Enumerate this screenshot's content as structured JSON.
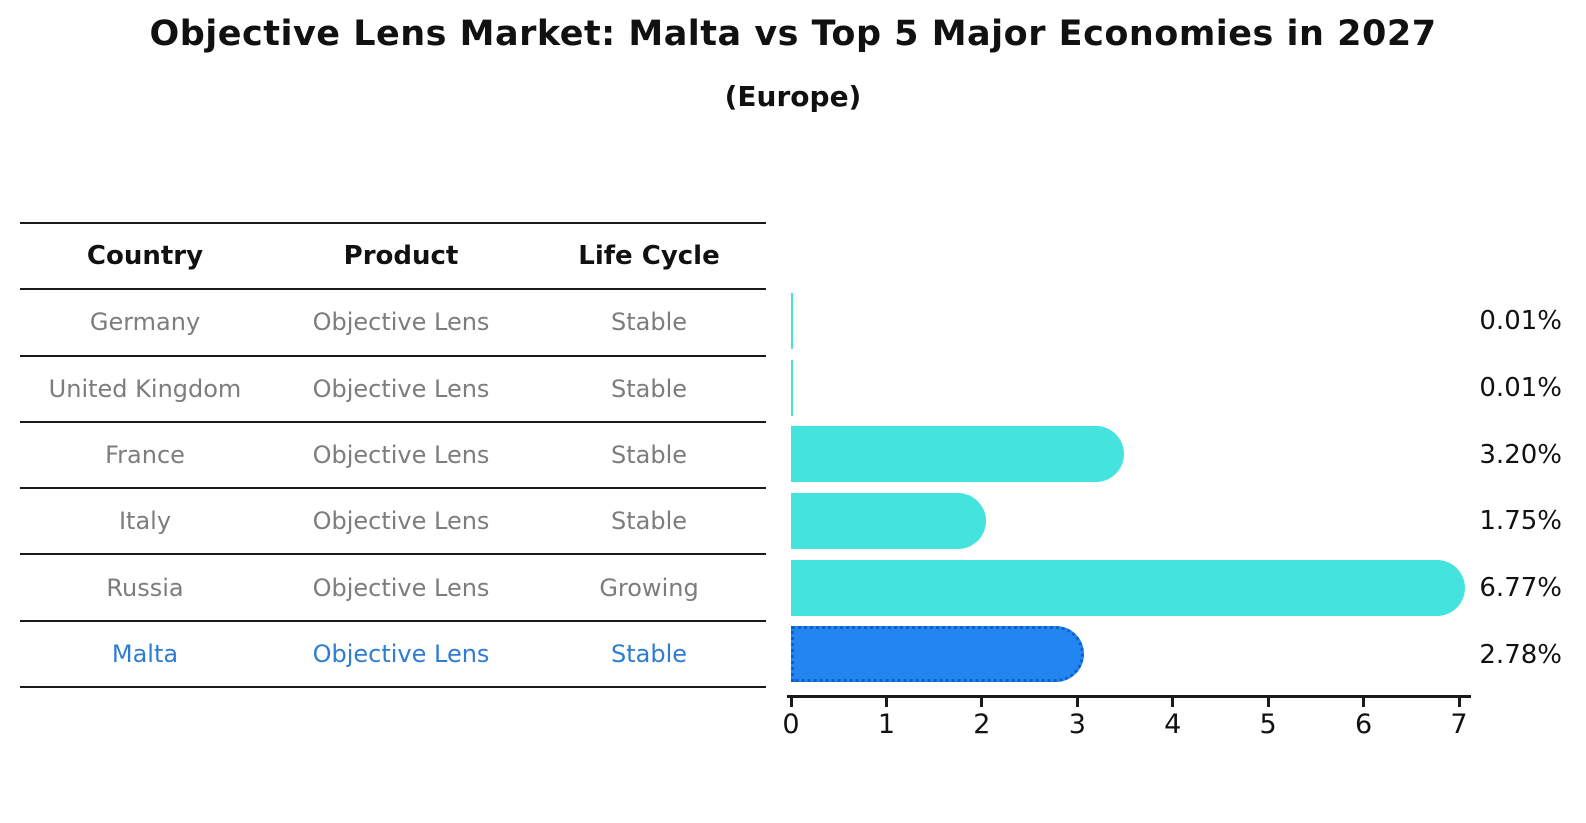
{
  "header": {
    "title": "Objective Lens Market: Malta vs Top 5 Major Economies in 2027",
    "subtitle": "(Europe)"
  },
  "table": {
    "headers": [
      "Country",
      "Product",
      "Life Cycle"
    ],
    "rows": [
      {
        "country": "Germany",
        "product": "Objective Lens",
        "life_cycle": "Stable",
        "highlight": false
      },
      {
        "country": "United Kingdom",
        "product": "Objective Lens",
        "life_cycle": "Stable",
        "highlight": false
      },
      {
        "country": "France",
        "product": "Objective Lens",
        "life_cycle": "Stable",
        "highlight": false
      },
      {
        "country": "Italy",
        "product": "Objective Lens",
        "life_cycle": "Stable",
        "highlight": false
      },
      {
        "country": "Russia",
        "product": "Objective Lens",
        "life_cycle": "Growing",
        "highlight": false
      },
      {
        "country": "Malta",
        "product": "Objective Lens",
        "life_cycle": "Stable",
        "highlight": true
      }
    ]
  },
  "chart_data": {
    "type": "bar",
    "orientation": "horizontal",
    "title": "Objective Lens Market: Malta vs Top 5 Major Economies in 2027",
    "subtitle": "(Europe)",
    "categories": [
      "Germany",
      "United Kingdom",
      "France",
      "Italy",
      "Russia",
      "Malta"
    ],
    "values": [
      0.01,
      0.01,
      3.2,
      1.75,
      6.77,
      2.78
    ],
    "value_labels": [
      "0.01%",
      "0.01%",
      "3.20%",
      "1.75%",
      "6.77%",
      "2.78%"
    ],
    "xlim": [
      0,
      7
    ],
    "xticks": [
      "0",
      "1",
      "2",
      "3",
      "4",
      "5",
      "6",
      "7"
    ],
    "grid": false,
    "legend_position": "none",
    "bar_color": "#45e3dd",
    "highlight_index": 5,
    "highlight_color": "#2285f0",
    "highlight_border_color": "#0c62c9"
  },
  "colors": {
    "title_text": "#111111",
    "table_header_text": "#111111",
    "table_row_text": "#7d7d7d",
    "highlight_text": "#2e7dd1",
    "rule": "#1a1a1a",
    "axis": "#1a1a1a",
    "value_label_text": "#111111"
  }
}
